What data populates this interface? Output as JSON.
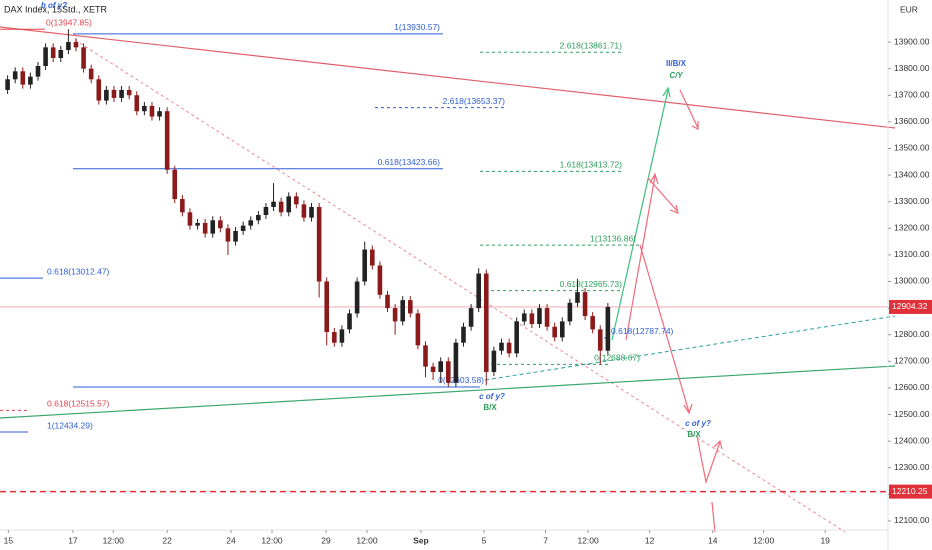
{
  "chart_data": {
    "type": "candlestick",
    "title": "DAX Index, 15Std., XETR",
    "currency": "EUR",
    "up_color": "#222222",
    "down_color": "#8b1a1a",
    "candles": [
      [
        13720,
        13775,
        13705,
        13760
      ],
      [
        13760,
        13805,
        13745,
        13790
      ],
      [
        13790,
        13805,
        13725,
        13740
      ],
      [
        13740,
        13785,
        13725,
        13770
      ],
      [
        13770,
        13825,
        13755,
        13810
      ],
      [
        13810,
        13895,
        13795,
        13880
      ],
      [
        13880,
        13895,
        13825,
        13840
      ],
      [
        13840,
        13885,
        13825,
        13870
      ],
      [
        13870,
        13947.85,
        13855,
        13900
      ],
      [
        13900,
        13915,
        13865,
        13880
      ],
      [
        13880,
        13895,
        13785,
        13800
      ],
      [
        13800,
        13815,
        13745,
        13760
      ],
      [
        13760,
        13775,
        13665,
        13680
      ],
      [
        13680,
        13735,
        13665,
        13720
      ],
      [
        13720,
        13735,
        13675,
        13690
      ],
      [
        13690,
        13735,
        13675,
        13720
      ],
      [
        13720,
        13735,
        13685,
        13700
      ],
      [
        13700,
        13715,
        13625,
        13640
      ],
      [
        13640,
        13675,
        13625,
        13660
      ],
      [
        13660,
        13675,
        13605,
        13620
      ],
      [
        13620,
        13655,
        13605,
        13640
      ],
      [
        13640,
        13655,
        13405,
        13420
      ],
      [
        13420,
        13435,
        13295,
        13310
      ],
      [
        13310,
        13325,
        13245,
        13260
      ],
      [
        13260,
        13275,
        13195,
        13210
      ],
      [
        13210,
        13235,
        13195,
        13220
      ],
      [
        13220,
        13235,
        13165,
        13180
      ],
      [
        13180,
        13245,
        13165,
        13230
      ],
      [
        13230,
        13245,
        13185,
        13200
      ],
      [
        13200,
        13215,
        13100,
        13150
      ],
      [
        13150,
        13205,
        13135,
        13190
      ],
      [
        13190,
        13225,
        13175,
        13210
      ],
      [
        13210,
        13245,
        13195,
        13230
      ],
      [
        13230,
        13265,
        13215,
        13250
      ],
      [
        13250,
        13295,
        13235,
        13280
      ],
      [
        13280,
        13370,
        13265,
        13300
      ],
      [
        13300,
        13315,
        13245,
        13260
      ],
      [
        13260,
        13335,
        13245,
        13320
      ],
      [
        13320,
        13335,
        13275,
        13290
      ],
      [
        13290,
        13305,
        13225,
        13240
      ],
      [
        13240,
        13295,
        13225,
        13280
      ],
      [
        13280,
        13295,
        12940,
        13000
      ],
      [
        13000,
        13015,
        12760,
        12810
      ],
      [
        12810,
        12825,
        12755,
        12770
      ],
      [
        12770,
        12835,
        12755,
        12820
      ],
      [
        12820,
        12895,
        12805,
        12880
      ],
      [
        12880,
        13015,
        12865,
        13000
      ],
      [
        13000,
        13150,
        12985,
        13120
      ],
      [
        13120,
        13135,
        13045,
        13060
      ],
      [
        13060,
        13075,
        12935,
        12950
      ],
      [
        12950,
        12965,
        12885,
        12900
      ],
      [
        12900,
        12915,
        12800,
        12850
      ],
      [
        12850,
        12945,
        12835,
        12930
      ],
      [
        12930,
        12945,
        12865,
        12880
      ],
      [
        12880,
        12895,
        12745,
        12760
      ],
      [
        12760,
        12775,
        12640,
        12680
      ],
      [
        12680,
        12695,
        12630,
        12660
      ],
      [
        12660,
        12715,
        12620,
        12700
      ],
      [
        12700,
        12715,
        12603.58,
        12620
      ],
      [
        12620,
        12785,
        12605,
        12770
      ],
      [
        12770,
        12845,
        12755,
        12830
      ],
      [
        12830,
        12915,
        12815,
        12900
      ],
      [
        12900,
        13050,
        12885,
        13030
      ],
      [
        13030,
        13045,
        12610,
        12660
      ],
      [
        12660,
        12755,
        12645,
        12740
      ],
      [
        12740,
        12785,
        12725,
        12770
      ],
      [
        12770,
        12785,
        12715,
        12730
      ],
      [
        12730,
        12865,
        12715,
        12850
      ],
      [
        12850,
        12895,
        12835,
        12880
      ],
      [
        12880,
        12895,
        12825,
        12840
      ],
      [
        12840,
        12915,
        12825,
        12900
      ],
      [
        12900,
        12915,
        12815,
        12830
      ],
      [
        12830,
        12845,
        12775,
        12790
      ],
      [
        12790,
        12865,
        12775,
        12850
      ],
      [
        12850,
        12935,
        12835,
        12920
      ],
      [
        12920,
        13010,
        12905,
        12960
      ],
      [
        12960,
        12975,
        12855,
        12870
      ],
      [
        12870,
        12885,
        12805,
        12820
      ],
      [
        12820,
        12835,
        12688,
        12740
      ],
      [
        12740,
        12919,
        12725,
        12904.32
      ]
    ],
    "xlim": [
      -1,
      116
    ],
    "xticks": [
      {
        "value": 0.1,
        "label": "15"
      },
      {
        "value": 8.6,
        "label": "17"
      },
      {
        "value": 13.9,
        "label": "12:00"
      },
      {
        "value": 21,
        "label": "22"
      },
      {
        "value": 29.4,
        "label": "24"
      },
      {
        "value": 34.8,
        "label": "12:00"
      },
      {
        "value": 41.9,
        "label": "29"
      },
      {
        "value": 47.3,
        "label": "12:00"
      },
      {
        "value": 54.4,
        "label": "Sep"
      },
      {
        "value": 62.7,
        "label": "5"
      },
      {
        "value": 70.8,
        "label": "7"
      },
      {
        "value": 76.4,
        "label": "12:00"
      },
      {
        "value": 84.5,
        "label": "12"
      },
      {
        "value": 92.8,
        "label": "14"
      },
      {
        "value": 99.5,
        "label": "12:00"
      },
      {
        "value": 107.6,
        "label": "19"
      }
    ],
    "ylim": [
      12066,
      14058
    ],
    "yticks": [
      {
        "value": 12100,
        "label": "12100.00"
      },
      {
        "value": 12200,
        "label": "12200.00"
      },
      {
        "value": 12300,
        "label": "12300.00"
      },
      {
        "value": 12400,
        "label": "12400.00"
      },
      {
        "value": 12500,
        "label": "12500.00"
      },
      {
        "value": 12600,
        "label": "12600.00"
      },
      {
        "value": 12700,
        "label": "12700.00"
      },
      {
        "value": 12800,
        "label": "12800.00"
      },
      {
        "value": 12900,
        "label": "12900.00"
      },
      {
        "value": 13000,
        "label": "13000.00"
      },
      {
        "value": 13100,
        "label": "13100.00"
      },
      {
        "value": 13200,
        "label": "13200.00"
      },
      {
        "value": 13300,
        "label": "13300.00"
      },
      {
        "value": 13400,
        "label": "13400.00"
      },
      {
        "value": 13500,
        "label": "13500.00"
      },
      {
        "value": 13600,
        "label": "13600.00"
      },
      {
        "value": 13700,
        "label": "13700.00"
      },
      {
        "value": 13800,
        "label": "13800.00"
      },
      {
        "value": 13900,
        "label": "13900.00"
      }
    ],
    "current_price": 12904.32,
    "alert_price": 12210.25,
    "levels": [
      {
        "label": "0(13947.85)",
        "value": 13947.85,
        "color": "#e0454f"
      },
      {
        "label": "1(13930.57)",
        "value": 13930.57,
        "color": "#2f5fd6"
      },
      {
        "label": "2.618(13653.37)",
        "value": 13653.37,
        "color": "#2f5fd6"
      },
      {
        "label": "0.618(13423.66)",
        "value": 13423.66,
        "color": "#2f5fd6"
      },
      {
        "label": "0.618(13012.47)",
        "value": 13012.47,
        "color": "#2f5fd6"
      },
      {
        "label": "0(12603.58)",
        "value": 12603.58,
        "color": "#2f5fd6"
      },
      {
        "label": "0.618(12515.57)",
        "value": 12515.57,
        "color": "#e0454f"
      },
      {
        "label": "1(12434.29)",
        "value": 12434.29,
        "color": "#2f5fd6"
      },
      {
        "label": "2.618(13861.71)",
        "value": 13861.71,
        "color": "#2e9e5b"
      },
      {
        "label": "1.618(13413.72)",
        "value": 13413.72,
        "color": "#2e9e5b"
      },
      {
        "label": "1(13136.86)",
        "value": 13136.86,
        "color": "#2e9e5b"
      },
      {
        "label": "0.618(12965.73)",
        "value": 12965.73,
        "color": "#2e9e5b"
      },
      {
        "label": "0.618(12787.74)",
        "value": 12787.74,
        "color": "#2f5fd6"
      },
      {
        "label": "0(12688.67)",
        "value": 12688.67,
        "color": "#2e9e5b"
      }
    ],
    "wave_labels": [
      {
        "text": "b of y?",
        "color": "#2f5fd6"
      },
      {
        "text": "c of y?",
        "color": "#2f5fd6"
      },
      {
        "text": "B/X",
        "color": "#2e9e5b"
      },
      {
        "text": "II/B/X",
        "color": "#2f5fd6"
      },
      {
        "text": "C/Y",
        "color": "#2e9e5b"
      },
      {
        "text": "c of y?",
        "color": "#2f5fd6"
      },
      {
        "text": "B/X",
        "color": "#2e9e5b"
      }
    ]
  }
}
